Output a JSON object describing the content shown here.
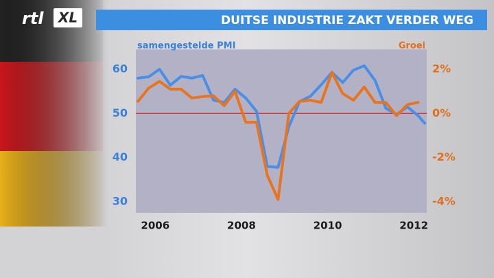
{
  "logo": {
    "brand": "rtl",
    "suffix": "XL"
  },
  "chart_data": {
    "type": "line",
    "title": "DUITSE INDUSTRIE ZAKT VERDER WEG",
    "ylabel": "samengestelde PMI",
    "y2label": "Groei",
    "x": [
      2005.6,
      2005.85,
      2006.1,
      2006.35,
      2006.6,
      2006.85,
      2007.1,
      2007.35,
      2007.6,
      2007.85,
      2008.1,
      2008.35,
      2008.6,
      2008.85,
      2009.1,
      2009.35,
      2009.6,
      2009.85,
      2010.1,
      2010.35,
      2010.6,
      2010.85,
      2011.1,
      2011.35,
      2011.6,
      2011.85,
      2012.1,
      2012.25
    ],
    "xlim": [
      2005.55,
      2012.3
    ],
    "xticks": [
      2006,
      2008,
      2010,
      2012
    ],
    "ylim": [
      27.5,
      64.5
    ],
    "yticks": [
      30,
      40,
      50,
      60
    ],
    "y2lim": [
      -4.5,
      2.9
    ],
    "y2ticks": [
      {
        "value": -4,
        "label": "-4%"
      },
      {
        "value": -2,
        "label": "-2%"
      },
      {
        "value": 0,
        "label": "0%"
      },
      {
        "value": 2,
        "label": "2%"
      }
    ],
    "reference_line": 50,
    "reference_color": "#d8242a",
    "series": [
      {
        "name": "samengestelde PMI",
        "color": "#4a8fe6",
        "values": [
          58.0,
          58.3,
          60.0,
          56.4,
          58.4,
          58.0,
          58.6,
          53.0,
          52.5,
          55.5,
          53.5,
          50.5,
          38.0,
          37.8,
          47.0,
          52.7,
          53.9,
          56.5,
          59.3,
          57.0,
          59.8,
          60.8,
          57.5,
          51.2,
          49.8,
          51.5,
          49.5,
          47.8
        ]
      },
      {
        "name": "Groei",
        "color": "#e8741e",
        "axis": "y2",
        "values": [
          0.55,
          1.15,
          1.45,
          1.1,
          1.1,
          0.7,
          0.76,
          0.8,
          0.35,
          1.0,
          -0.4,
          -0.4,
          -2.8,
          -3.9,
          0.0,
          0.55,
          0.6,
          0.5,
          1.85,
          0.9,
          0.6,
          1.2,
          0.5,
          0.5,
          -0.1,
          0.4,
          0.5,
          null
        ]
      }
    ]
  }
}
